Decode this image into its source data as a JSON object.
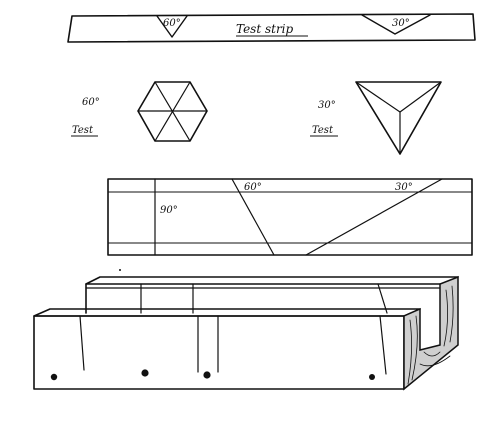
{
  "test_strip": {
    "title": "Test strip",
    "angle_left": "60°",
    "angle_right": "30°"
  },
  "hexagon_test": {
    "angle": "60°",
    "label": "Test"
  },
  "triangle_test": {
    "angle": "30°",
    "label": "Test"
  },
  "mitre_box_plan": {
    "angle_square": "90°",
    "angle_60": "60°",
    "angle_30": "30°"
  },
  "colors": {
    "ink": "#111111",
    "paper": "#ffffff"
  }
}
